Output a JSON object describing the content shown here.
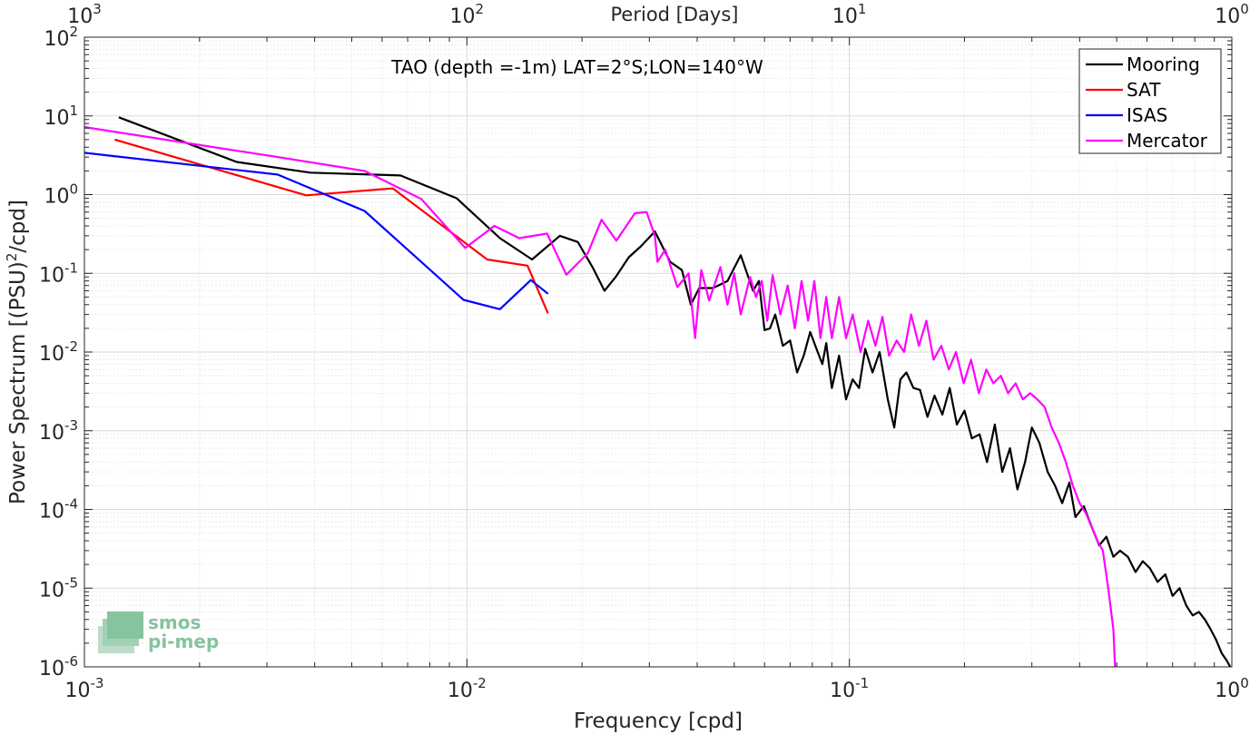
{
  "chart_data": {
    "type": "line",
    "title": "TAO (depth =-1m) LAT=2°S;LON=140°W",
    "xlabel": "Frequency [cpd]",
    "ylabel_parts": [
      "Power Spectrum [(PSU)",
      "2",
      "/cpd]"
    ],
    "top_xlabel": "Period [Days]",
    "x_scale": "log",
    "y_scale": "log",
    "xlim": [
      0.001,
      1
    ],
    "ylim": [
      1e-06,
      100
    ],
    "grid": true,
    "legend_position": "top-right",
    "x_ticks": [
      {
        "base": "10",
        "exp": "-3"
      },
      {
        "base": "10",
        "exp": "-2"
      },
      {
        "base": "10",
        "exp": "-1"
      },
      {
        "base": "10",
        "exp": "0"
      }
    ],
    "y_ticks": [
      {
        "base": "10",
        "exp": "-6"
      },
      {
        "base": "10",
        "exp": "-5"
      },
      {
        "base": "10",
        "exp": "-4"
      },
      {
        "base": "10",
        "exp": "-3"
      },
      {
        "base": "10",
        "exp": "-2"
      },
      {
        "base": "10",
        "exp": "-1"
      },
      {
        "base": "10",
        "exp": "0"
      },
      {
        "base": "10",
        "exp": "1"
      },
      {
        "base": "10",
        "exp": "2"
      }
    ],
    "top_ticks": [
      {
        "base": "10",
        "exp": "3"
      },
      {
        "base": "10",
        "exp": "2"
      },
      {
        "base": "10",
        "exp": "1"
      },
      {
        "base": "10",
        "exp": "0"
      }
    ],
    "series": [
      {
        "name": "Mooring",
        "color": "#000000",
        "x": [
          0.00123,
          0.0025,
          0.0039,
          0.0067,
          0.0094,
          0.0122,
          0.0148,
          0.0175,
          0.0195,
          0.0213,
          0.0229,
          0.0245,
          0.0265,
          0.0285,
          0.031,
          0.034,
          0.0365,
          0.0385,
          0.0405,
          0.044,
          0.048,
          0.052,
          0.056,
          0.058,
          0.06,
          0.062,
          0.064,
          0.067,
          0.07,
          0.073,
          0.076,
          0.079,
          0.082,
          0.085,
          0.087,
          0.09,
          0.094,
          0.098,
          0.102,
          0.106,
          0.11,
          0.115,
          0.12,
          0.126,
          0.131,
          0.136,
          0.141,
          0.147,
          0.153,
          0.16,
          0.167,
          0.175,
          0.183,
          0.191,
          0.2,
          0.209,
          0.219,
          0.229,
          0.24,
          0.251,
          0.263,
          0.275,
          0.288,
          0.3,
          0.314,
          0.33,
          0.345,
          0.36,
          0.376,
          0.39,
          0.41,
          0.43,
          0.45,
          0.47,
          0.49,
          0.51,
          0.535,
          0.56,
          0.585,
          0.61,
          0.64,
          0.67,
          0.7,
          0.73,
          0.76,
          0.79,
          0.82,
          0.85,
          0.88,
          0.91,
          0.94,
          0.97,
          0.99
        ],
        "y": [
          9.6,
          2.6,
          1.9,
          1.75,
          0.9,
          0.28,
          0.15,
          0.3,
          0.25,
          0.12,
          0.06,
          0.09,
          0.16,
          0.22,
          0.34,
          0.14,
          0.11,
          0.04,
          0.065,
          0.065,
          0.08,
          0.17,
          0.06,
          0.08,
          0.019,
          0.02,
          0.03,
          0.012,
          0.014,
          0.0055,
          0.009,
          0.018,
          0.011,
          0.007,
          0.013,
          0.0035,
          0.009,
          0.0025,
          0.0045,
          0.0035,
          0.011,
          0.0055,
          0.01,
          0.0025,
          0.0011,
          0.0045,
          0.0055,
          0.0035,
          0.0033,
          0.0015,
          0.0028,
          0.0016,
          0.0035,
          0.0012,
          0.0018,
          0.0008,
          0.0009,
          0.0004,
          0.0012,
          0.0003,
          0.0006,
          0.00018,
          0.0004,
          0.0011,
          0.0007,
          0.0003,
          0.0002,
          0.00012,
          0.00022,
          8e-05,
          0.00011,
          6e-05,
          3.5e-05,
          4.5e-05,
          2.5e-05,
          3e-05,
          2.5e-05,
          1.6e-05,
          2.2e-05,
          1.8e-05,
          1.2e-05,
          1.5e-05,
          8e-06,
          1e-05,
          6e-06,
          4.5e-06,
          5e-06,
          4e-06,
          3e-06,
          2.2e-06,
          1.5e-06,
          1.2e-06,
          1e-06
        ]
      },
      {
        "name": "SAT",
        "color": "#ff0000",
        "x": [
          0.0012,
          0.0038,
          0.0064,
          0.0113,
          0.0144,
          0.0163
        ],
        "y": [
          5.0,
          0.98,
          1.2,
          0.15,
          0.125,
          0.031
        ]
      },
      {
        "name": "ISAS",
        "color": "#0000ff",
        "x": [
          0.001,
          0.0032,
          0.0054,
          0.0098,
          0.0122,
          0.0147,
          0.0163
        ],
        "y": [
          3.4,
          1.8,
          0.62,
          0.046,
          0.035,
          0.082,
          0.055
        ]
      },
      {
        "name": "Mercator",
        "color": "#ff00ff",
        "x": [
          0.001,
          0.0032,
          0.0054,
          0.0076,
          0.0099,
          0.0118,
          0.0137,
          0.0162,
          0.0182,
          0.0207,
          0.0225,
          0.0246,
          0.0275,
          0.0295,
          0.031,
          0.0315,
          0.033,
          0.0355,
          0.038,
          0.0395,
          0.041,
          0.043,
          0.046,
          0.048,
          0.05,
          0.052,
          0.055,
          0.057,
          0.059,
          0.061,
          0.063,
          0.066,
          0.069,
          0.072,
          0.075,
          0.078,
          0.081,
          0.084,
          0.087,
          0.09,
          0.094,
          0.098,
          0.102,
          0.107,
          0.112,
          0.117,
          0.122,
          0.127,
          0.133,
          0.139,
          0.145,
          0.152,
          0.159,
          0.166,
          0.174,
          0.182,
          0.19,
          0.199,
          0.208,
          0.218,
          0.228,
          0.238,
          0.249,
          0.26,
          0.272,
          0.284,
          0.297,
          0.31,
          0.324,
          0.338,
          0.353,
          0.368,
          0.384,
          0.4,
          0.415,
          0.43,
          0.445,
          0.46,
          0.475,
          0.49,
          0.495
        ],
        "y": [
          7.2,
          3.0,
          2.0,
          0.88,
          0.21,
          0.4,
          0.28,
          0.32,
          0.096,
          0.18,
          0.48,
          0.26,
          0.58,
          0.6,
          0.3,
          0.14,
          0.2,
          0.067,
          0.1,
          0.015,
          0.11,
          0.045,
          0.12,
          0.04,
          0.1,
          0.03,
          0.09,
          0.05,
          0.08,
          0.025,
          0.095,
          0.03,
          0.07,
          0.02,
          0.08,
          0.025,
          0.08,
          0.015,
          0.05,
          0.015,
          0.05,
          0.015,
          0.03,
          0.01,
          0.025,
          0.012,
          0.028,
          0.009,
          0.014,
          0.01,
          0.03,
          0.012,
          0.025,
          0.008,
          0.012,
          0.006,
          0.01,
          0.004,
          0.008,
          0.003,
          0.006,
          0.004,
          0.005,
          0.003,
          0.004,
          0.0025,
          0.003,
          0.0025,
          0.002,
          0.0011,
          0.0007,
          0.0004,
          0.0002,
          0.00012,
          9e-05,
          6e-05,
          4e-05,
          3e-05,
          1e-05,
          3e-06,
          1e-06
        ]
      }
    ]
  },
  "watermark": {
    "line1": "smos",
    "line2": "pi-mep"
  }
}
